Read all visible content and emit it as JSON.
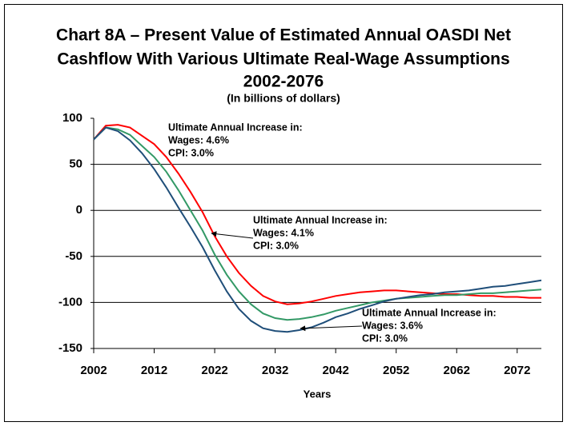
{
  "chart_data": {
    "type": "line",
    "title": [
      "Chart 8A – Present Value of Estimated Annual OASDI Net",
      "Cashflow With Various Ultimate Real-Wage Assumptions",
      "2002-2076"
    ],
    "subtitle": "(In billions of dollars)",
    "x_label": "Years",
    "x": [
      2002,
      2004,
      2006,
      2008,
      2010,
      2012,
      2014,
      2016,
      2018,
      2020,
      2022,
      2024,
      2026,
      2028,
      2030,
      2032,
      2034,
      2036,
      2038,
      2040,
      2042,
      2044,
      2046,
      2048,
      2050,
      2052,
      2054,
      2056,
      2058,
      2060,
      2062,
      2064,
      2066,
      2068,
      2070,
      2072,
      2074,
      2076
    ],
    "series": [
      {
        "name": "Wages: 4.6%",
        "color": "#ff0000",
        "values": [
          77,
          92,
          93,
          90,
          81,
          72,
          58,
          40,
          20,
          -2,
          -28,
          -50,
          -68,
          -82,
          -93,
          -99,
          -102,
          -101,
          -99,
          -96,
          -93,
          -91,
          -89,
          -88,
          -87,
          -87,
          -88,
          -89,
          -90,
          -91,
          -91,
          -92,
          -93,
          -93,
          -94,
          -94,
          -95,
          -95
        ]
      },
      {
        "name": "Wages: 4.1%",
        "color": "#339966",
        "values": [
          77,
          90,
          88,
          82,
          70,
          58,
          42,
          22,
          0,
          -22,
          -48,
          -70,
          -88,
          -102,
          -112,
          -117,
          -119,
          -118,
          -116,
          -113,
          -109,
          -106,
          -103,
          -100,
          -98,
          -96,
          -95,
          -94,
          -93,
          -92,
          -92,
          -91,
          -90,
          -90,
          -89,
          -88,
          -87,
          -86
        ]
      },
      {
        "name": "Wages: 3.6%",
        "color": "#1f4e79",
        "values": [
          77,
          90,
          86,
          76,
          62,
          45,
          25,
          3,
          -18,
          -40,
          -65,
          -88,
          -107,
          -120,
          -128,
          -131,
          -132,
          -130,
          -127,
          -122,
          -116,
          -112,
          -107,
          -103,
          -99,
          -96,
          -94,
          -92,
          -91,
          -89,
          -88,
          -87,
          -85,
          -83,
          -82,
          -80,
          -78,
          -76
        ]
      }
    ],
    "annotations": [
      {
        "lines": [
          "Ultimate Annual Increase in:",
          "Wages:  4.6%",
          "CPI:  3.0%"
        ]
      },
      {
        "lines": [
          "Ultimate Annual Increase in:",
          "Wages:  4.1%",
          "CPI:  3.0%"
        ]
      },
      {
        "lines": [
          "Ultimate Annual Increase in:",
          "Wages:  3.6%",
          "CPI:  3.0%"
        ]
      }
    ],
    "xlim": [
      2002,
      2076
    ],
    "xticks": [
      2002,
      2012,
      2022,
      2032,
      2042,
      2052,
      2062,
      2072
    ],
    "ylim": [
      -150,
      100
    ],
    "yticks": [
      -150,
      -100,
      -50,
      0,
      50,
      100
    ],
    "grid": true
  }
}
